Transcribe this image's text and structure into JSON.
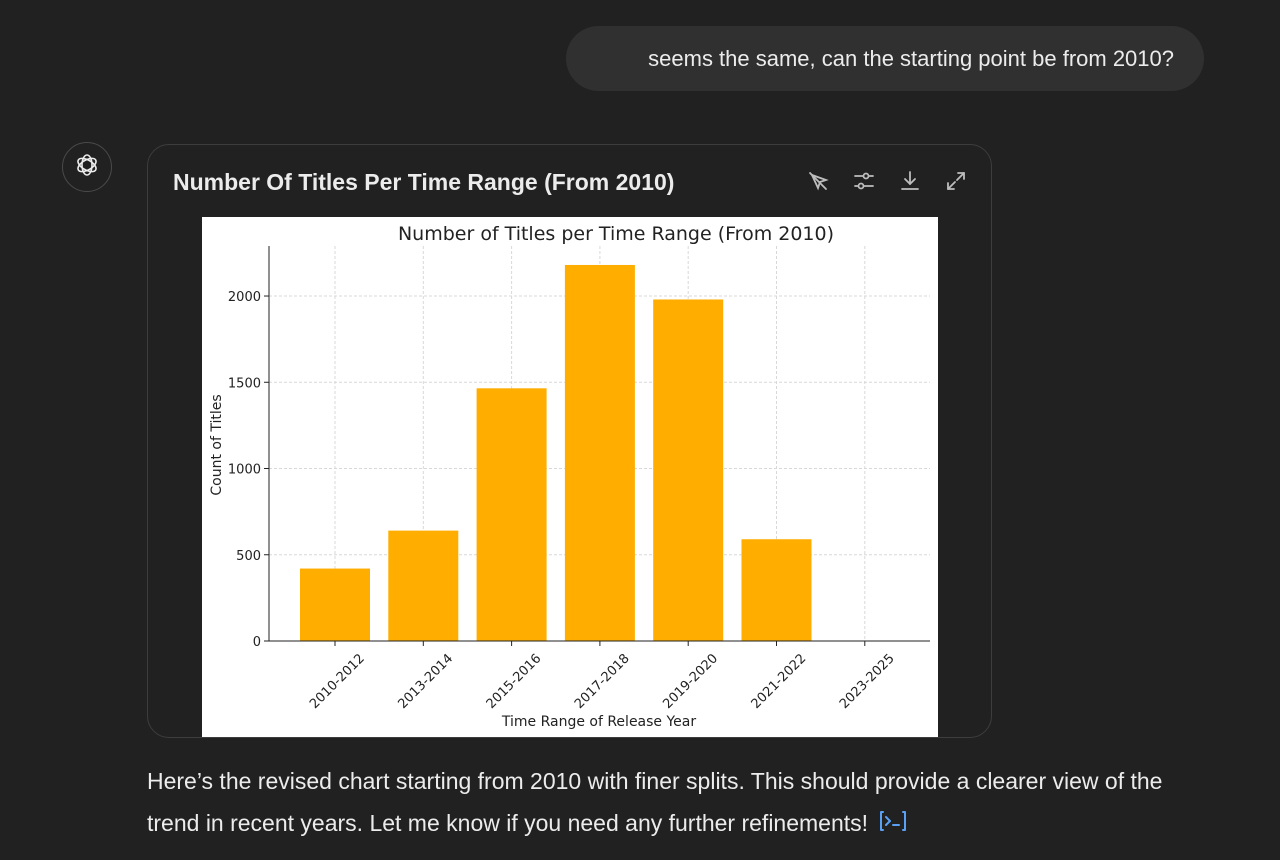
{
  "user_message": "seems the same, can the starting point be from 2010?",
  "card": {
    "title": "Number Of Titles Per Time Range (From 2010)",
    "toolbar": [
      "interactive-toggle-icon",
      "chart-settings-icon",
      "download-icon",
      "expand-icon"
    ]
  },
  "chart_data": {
    "type": "bar",
    "title": "Number of Titles per Time Range (From 2010)",
    "xlabel": "Time Range of Release Year",
    "ylabel": "Count of Titles",
    "categories": [
      "2010-2012",
      "2013-2014",
      "2015-2016",
      "2017-2018",
      "2019-2020",
      "2021-2022",
      "2023-2025"
    ],
    "values": [
      420,
      640,
      1465,
      2180,
      1980,
      590,
      0
    ],
    "yticks": [
      0,
      500,
      1000,
      1500,
      2000
    ],
    "ylim": [
      0,
      2290
    ],
    "grid": true,
    "bar_color": "#FFAE00"
  },
  "assistant_message": "Here’s the revised chart starting from 2010 with finer splits. This should provide a clearer view of the trend in recent years. Let me know if you need any further refinements!",
  "colors": {
    "background": "#212121",
    "bubble": "#303030",
    "link_accent": "#5aa0f5"
  }
}
